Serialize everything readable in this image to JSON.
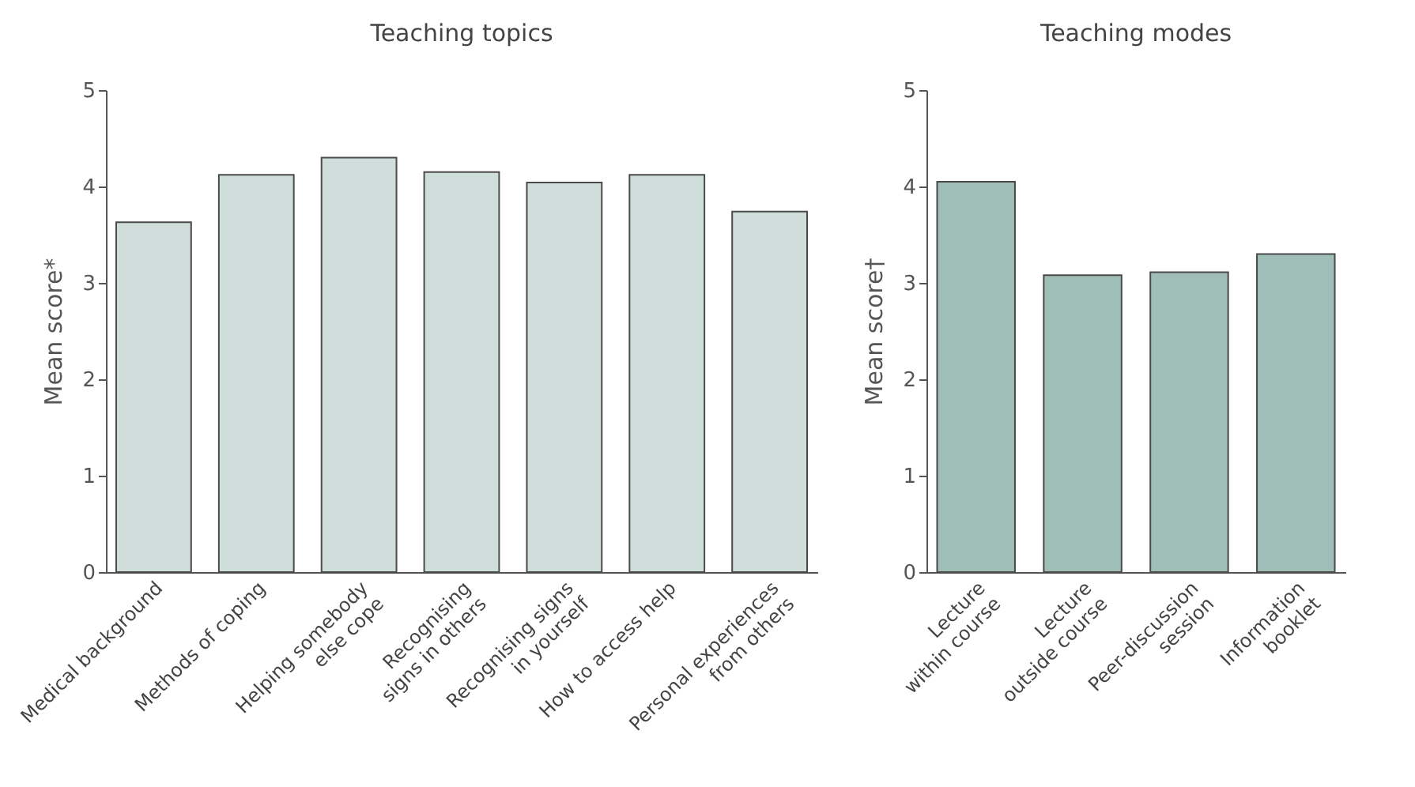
{
  "chart_data": [
    {
      "type": "bar",
      "title": "Teaching topics",
      "ylabel": "Mean score*",
      "categories": [
        "Medical background",
        "Methods of coping",
        "Helping somebody else cope",
        "Recognising signs in others",
        "Recognising signs in yourself",
        "How to access help",
        "Personal experiences from others"
      ],
      "values": [
        3.63,
        4.12,
        4.3,
        4.15,
        4.04,
        4.12,
        3.74
      ],
      "color": "#cfdeda",
      "ylim": [
        0,
        5
      ],
      "yticks": [
        0,
        1,
        2,
        3,
        4,
        5
      ],
      "grid": false
    },
    {
      "type": "bar",
      "title": "Teaching modes",
      "ylabel": "Mean score†",
      "categories": [
        "Lecture within course",
        "Lecture outside course",
        "Peer-discussion session",
        "Information booklet"
      ],
      "values": [
        4.05,
        3.08,
        3.11,
        3.3
      ],
      "color": "#a0beb8",
      "ylim": [
        0,
        5
      ],
      "yticks": [
        0,
        1,
        2,
        3,
        4,
        5
      ],
      "grid": false
    }
  ]
}
